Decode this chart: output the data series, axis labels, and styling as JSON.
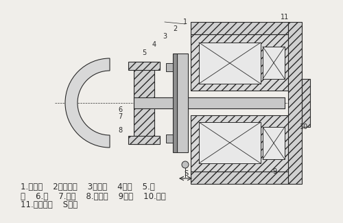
{
  "bg_color": "#f0eeea",
  "line_color": "#2a2a2a",
  "hatch_color": "#2a2a2a",
  "title": "",
  "legend_lines": [
    "1.防尘盖    2调节螺管    3摩擦片    4转子    5.轴",
    "套    6.轴    7.法兰    8.街铁盘    9弹簧    10.定子",
    "11.调节螺母    S气隙"
  ],
  "label_fontsize": 8.5,
  "fig_width": 5.0,
  "fig_height": 3.25,
  "dpi": 100
}
